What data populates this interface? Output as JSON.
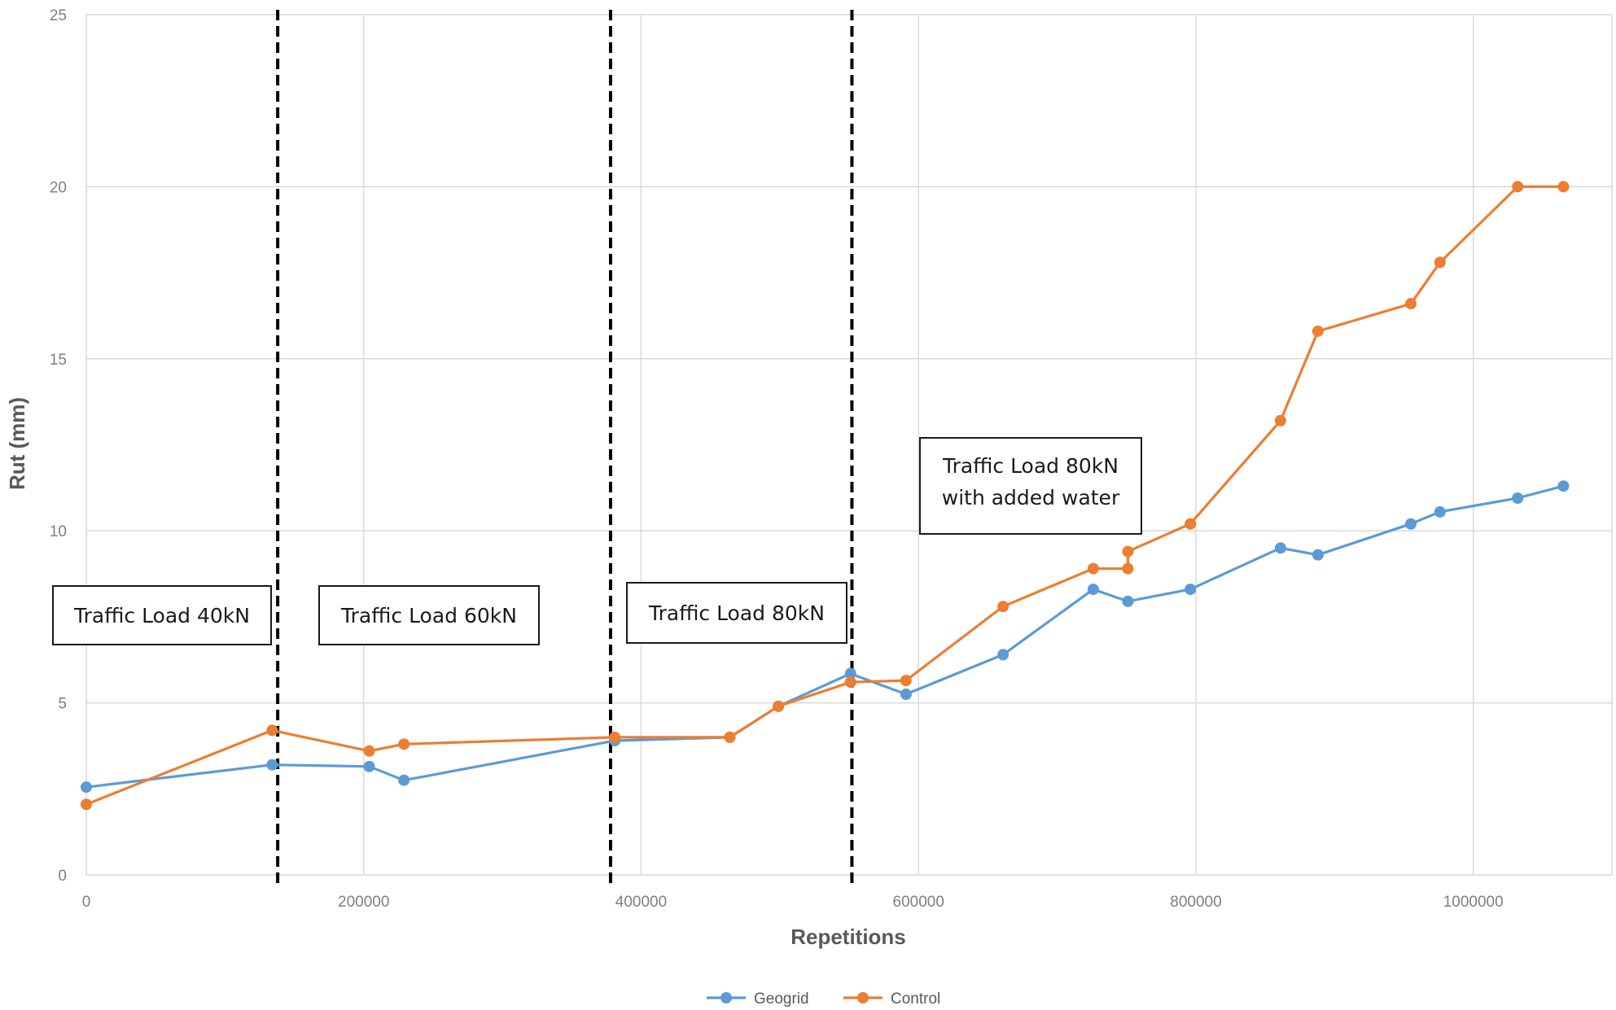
{
  "chart_data": {
    "type": "line",
    "xlabel": "Repetitions",
    "ylabel": "Rut (mm)",
    "xlim": [
      0,
      1100000
    ],
    "ylim": [
      0,
      25
    ],
    "x_ticks": [
      "0",
      "200000",
      "400000",
      "600000",
      "800000",
      "1000000"
    ],
    "y_ticks": [
      "0",
      "5",
      "10",
      "15",
      "20",
      "25"
    ],
    "grid": true,
    "legend_position": "bottom",
    "series": [
      {
        "name": "Geogrid",
        "color": "#5b9bd5",
        "points": [
          [
            0,
            2.55
          ],
          [
            134000,
            3.2
          ],
          [
            204000,
            3.15
          ],
          [
            229000,
            2.75
          ],
          [
            381000,
            3.9
          ],
          [
            464000,
            4.0
          ],
          [
            499000,
            4.9
          ],
          [
            551000,
            5.85
          ],
          [
            591000,
            5.25
          ],
          [
            661000,
            6.4
          ],
          [
            726000,
            8.3
          ],
          [
            751000,
            7.95
          ],
          [
            796000,
            8.3
          ],
          [
            861000,
            9.5
          ],
          [
            888000,
            9.3
          ],
          [
            955000,
            10.2
          ],
          [
            976000,
            10.55
          ],
          [
            1032000,
            10.95
          ],
          [
            1065000,
            11.3
          ]
        ]
      },
      {
        "name": "Control",
        "color": "#ed7d31",
        "points": [
          [
            0,
            2.05
          ],
          [
            134000,
            4.2
          ],
          [
            204000,
            3.6
          ],
          [
            229000,
            3.8
          ],
          [
            381000,
            4.0
          ],
          [
            464000,
            4.0
          ],
          [
            499000,
            4.9
          ],
          [
            551000,
            5.6
          ],
          [
            591000,
            5.65
          ],
          [
            661000,
            7.8
          ],
          [
            726000,
            8.9
          ],
          [
            751000,
            8.9
          ],
          [
            751000,
            9.4
          ],
          [
            796000,
            10.2
          ],
          [
            861000,
            13.2
          ],
          [
            888000,
            15.8
          ],
          [
            955000,
            16.6
          ],
          [
            976000,
            17.8
          ],
          [
            1032000,
            20.0
          ],
          [
            1065000,
            20.0
          ]
        ]
      }
    ],
    "phase_dividers": [
      138000,
      378000,
      552000
    ],
    "annotations": [
      {
        "text": "Traffic Load 40kN"
      },
      {
        "text": "Traffic Load 60kN"
      },
      {
        "text": "Traffic Load 80kN"
      },
      {
        "text": "Traffic Load 80kN",
        "text2": "with added water"
      }
    ]
  }
}
